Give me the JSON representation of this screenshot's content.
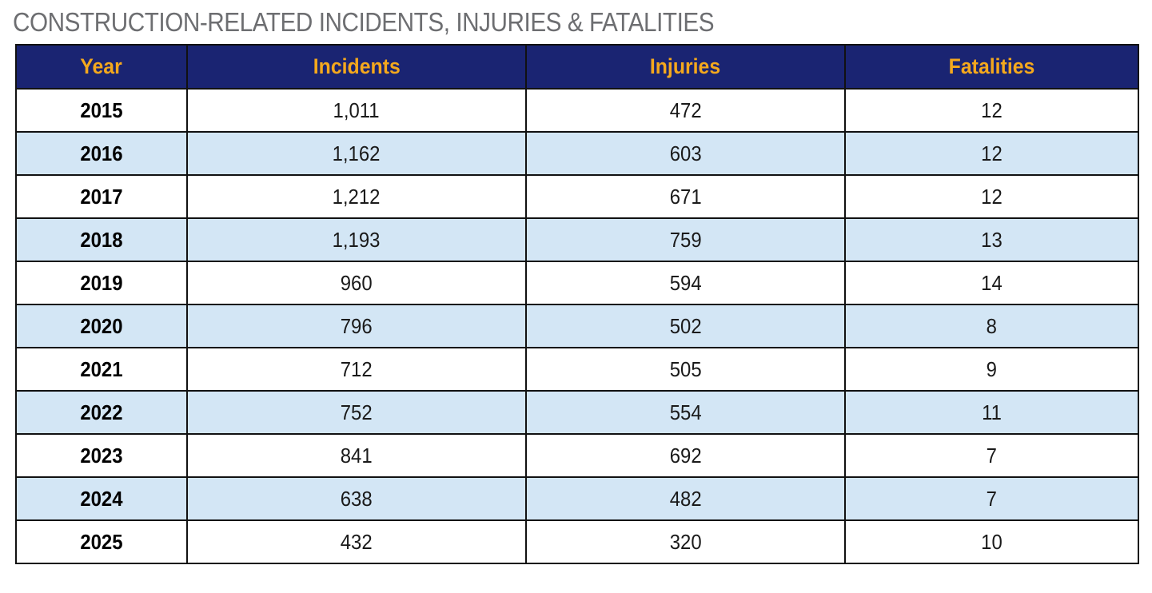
{
  "chart_data": {
    "type": "table",
    "title": "CONSTRUCTION-RELATED INCIDENTS, INJURIES & FATALITIES",
    "columns": [
      "Year",
      "Incidents",
      "Injuries",
      "Fatalities"
    ],
    "rows": [
      [
        "2015",
        "1,011",
        "472",
        "12"
      ],
      [
        "2016",
        "1,162",
        "603",
        "12"
      ],
      [
        "2017",
        "1,212",
        "671",
        "12"
      ],
      [
        "2018",
        "1,193",
        "759",
        "13"
      ],
      [
        "2019",
        "960",
        "594",
        "14"
      ],
      [
        "2020",
        "796",
        "502",
        "8"
      ],
      [
        "2021",
        "712",
        "505",
        "9"
      ],
      [
        "2022",
        "752",
        "554",
        "11"
      ],
      [
        "2023",
        "841",
        "692",
        "7"
      ],
      [
        "2024",
        "638",
        "482",
        "7"
      ],
      [
        "2025",
        "432",
        "320",
        "10"
      ]
    ]
  },
  "colors": {
    "header_background": "#1a2472",
    "header_text": "#f4a81d",
    "stripe": "#d3e6f5",
    "title": "#6d6e71"
  }
}
